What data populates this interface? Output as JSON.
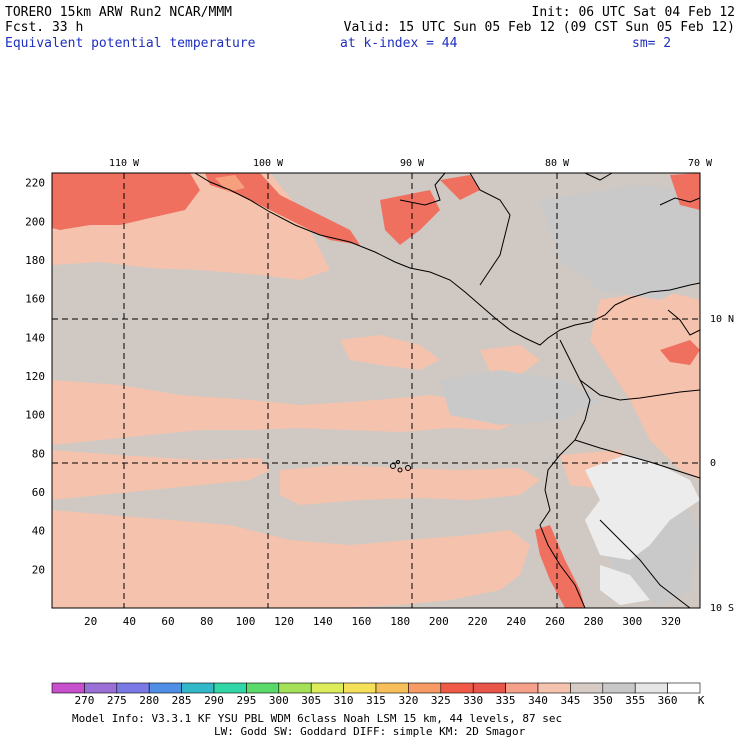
{
  "header": {
    "left_line1": "TORERO  15km ARW   Run2    NCAR/MMM",
    "left_line2": "Fcst.   33 h",
    "init": "Init: 06 UTC Sat 04 Feb 12",
    "valid": "Valid: 15 UTC Sun 05 Feb 12 (09 CST Sun 05 Feb 12)",
    "field": "Equivalent potential temperature",
    "kindex": "at k-index =  44",
    "smooth": "sm= 2"
  },
  "map": {
    "lon_labels": [
      "110 W",
      "100 W",
      "90 W",
      "80 W",
      "70 W"
    ],
    "lat_labels": [
      "10 N",
      "0",
      "10 S"
    ],
    "x_ticks": [
      20,
      40,
      60,
      80,
      100,
      120,
      140,
      160,
      180,
      200,
      220,
      240,
      260,
      280,
      300,
      320
    ],
    "y_ticks": [
      20,
      40,
      60,
      80,
      100,
      120,
      140,
      160,
      180,
      200,
      220
    ]
  },
  "legend": {
    "values": [
      "270",
      "275",
      "280",
      "285",
      "290",
      "295",
      "300",
      "305",
      "310",
      "315",
      "320",
      "325",
      "330",
      "335",
      "340",
      "345",
      "350",
      "355",
      "360"
    ],
    "unit": "K",
    "colors": [
      "#c84fcc",
      "#9b6fd8",
      "#7a7ae6",
      "#4f8fe6",
      "#32b8c8",
      "#32d7a8",
      "#5ad86a",
      "#a4e05a",
      "#dcec5a",
      "#f5e05a",
      "#f7bf5a",
      "#f79a64",
      "#f05a46",
      "#e8564a",
      "#f4a08a",
      "#f5c3ad",
      "#d7ccc5",
      "#c8c8c8",
      "#e6e6e6",
      "#ffffff"
    ]
  },
  "footer": {
    "line1": "Model Info: V3.3.1   KF     YSU PBL  WDM 6class  Noah LSM  15 km,   44 levels,   87 sec",
    "line2": "LW: Godd SW: Goddard DIFF: simple KM: 2D Smagor"
  }
}
